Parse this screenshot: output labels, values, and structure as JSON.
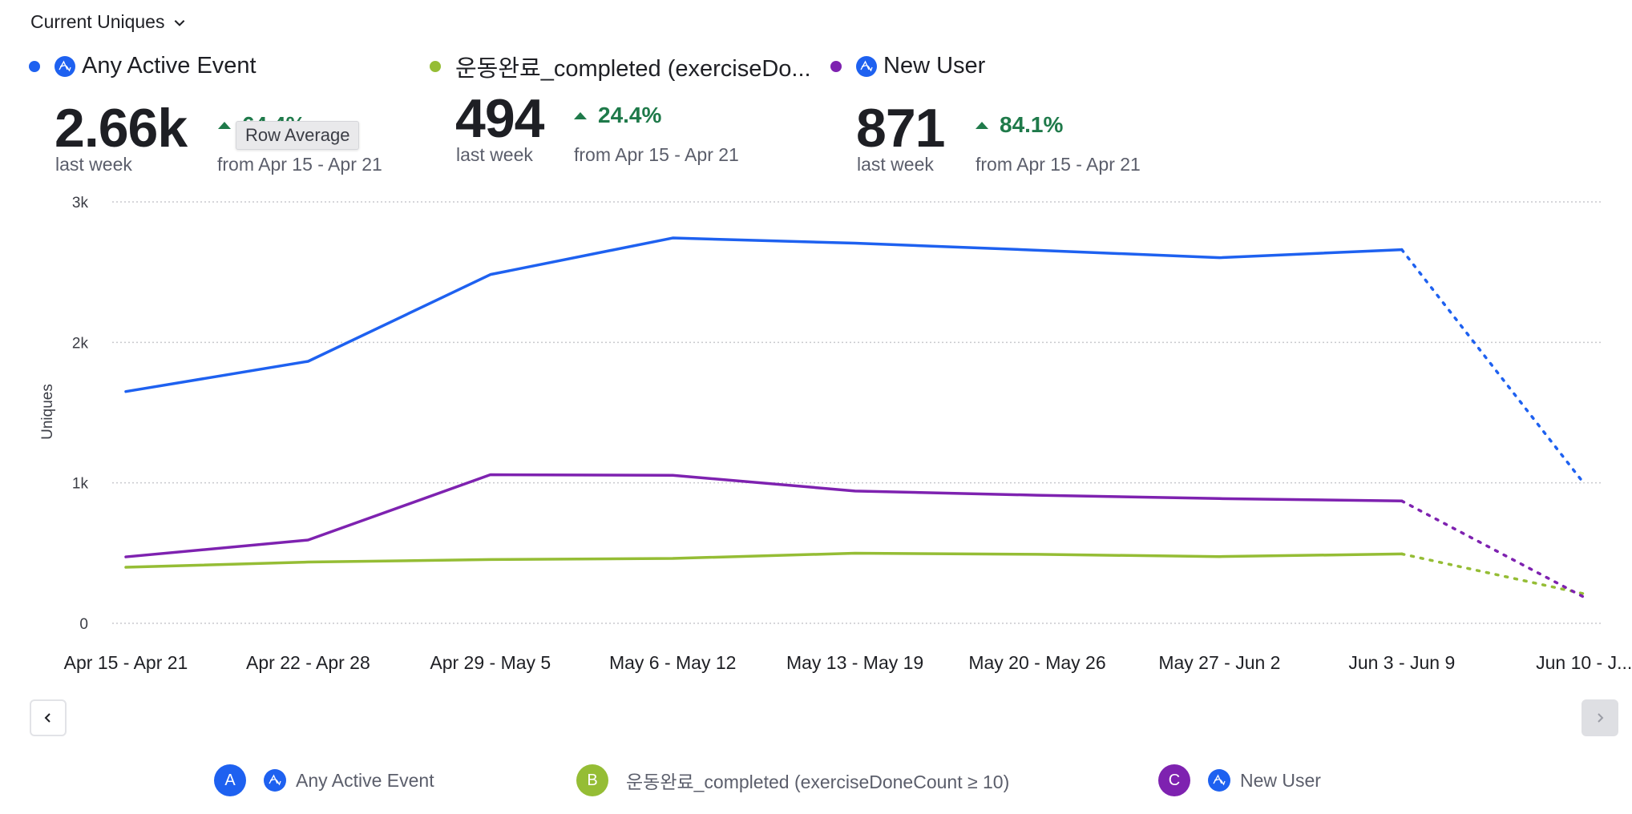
{
  "header": {
    "metric_selector": "Current Uniques"
  },
  "metrics": [
    {
      "label": "Any Active Event",
      "color": "#1e61f0",
      "has_event_icon": true,
      "value": "2.66k",
      "period": "last week",
      "delta": "64.4%",
      "delta_direction": "up",
      "compare": "from Apr 15 - Apr 21"
    },
    {
      "label": "운동완료_completed (exerciseDo...",
      "color": "#95bd35",
      "has_event_icon": false,
      "value": "494",
      "period": "last week",
      "delta": "24.4%",
      "delta_direction": "up",
      "compare": "from Apr 15 - Apr 21"
    },
    {
      "label": "New User",
      "color": "#7e22b0",
      "has_event_icon": true,
      "value": "871",
      "period": "last week",
      "delta": "84.1%",
      "delta_direction": "up",
      "compare": "from Apr 15 - Apr 21"
    }
  ],
  "tooltip": {
    "text": "Row Average"
  },
  "chart_data": {
    "type": "line",
    "title": "",
    "xlabel": "",
    "ylabel": "Uniques",
    "ylim": [
      0,
      3000
    ],
    "yticks": [
      0,
      1000,
      2000,
      3000
    ],
    "ytick_labels": [
      "0",
      "1k",
      "2k",
      "3k"
    ],
    "grid": true,
    "categories": [
      "Apr 15 - Apr 21",
      "Apr 22 - Apr 28",
      "Apr 29 - May 5",
      "May 6 - May 12",
      "May 13 - May 19",
      "May 20 - May 26",
      "May 27 - Jun 2",
      "Jun 3 - Jun 9",
      "Jun 10 - J..."
    ],
    "incomplete_from_index": 7,
    "series": [
      {
        "name": "Any Active Event",
        "color": "#1e61f0",
        "values": [
          1650,
          1865,
          2483,
          2743,
          2706,
          2656,
          2603,
          2660,
          995
        ]
      },
      {
        "name": "운동완료_completed (exerciseDoneCount ≥ 10)",
        "color": "#95bd35",
        "values": [
          399,
          436,
          454,
          462,
          499,
          491,
          475,
          494,
          210
        ]
      },
      {
        "name": "New User",
        "color": "#7e22b0",
        "values": [
          473,
          593,
          1058,
          1054,
          942,
          912,
          888,
          871,
          186
        ]
      }
    ]
  },
  "legend": [
    {
      "badge": "A",
      "label": "Any Active Event",
      "color": "#1e61f0",
      "has_event_icon": true
    },
    {
      "badge": "B",
      "label": "운동완료_completed (exerciseDoneCount ≥ 10)",
      "color": "#95bd35",
      "has_event_icon": false
    },
    {
      "badge": "C",
      "label": "New User",
      "color": "#7e22b0",
      "has_event_icon": true
    }
  ],
  "pagination": {
    "prev_icon": "chevron-left-icon",
    "next_icon": "chevron-right-icon",
    "next_disabled": true
  }
}
